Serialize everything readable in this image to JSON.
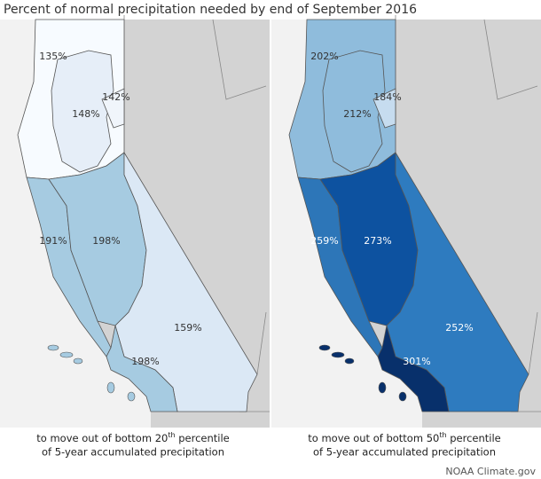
{
  "title": "Percent of normal precipitation needed by end of September 2016",
  "maps": [
    {
      "regions": [
        {
          "label": "135%",
          "color": "#f7fbff"
        },
        {
          "label": "148%",
          "color": "#e6eef8"
        },
        {
          "label": "142%",
          "color": "#f0f5fb"
        },
        {
          "label": "191%",
          "color": "#a6cbe1"
        },
        {
          "label": "198%",
          "color": "#a6cbe1"
        },
        {
          "label": "159%",
          "color": "#dbe8f5"
        },
        {
          "label": "198%",
          "color": "#a6cbe1"
        }
      ],
      "caption": {
        "before": "to move out of bottom 20",
        "sup": "th",
        "after": " percentile",
        "line2": "of 5-year accumulated precipitation"
      }
    },
    {
      "regions": [
        {
          "label": "202%",
          "color": "#8fbcdc"
        },
        {
          "label": "212%",
          "color": "#8fbcdc"
        },
        {
          "label": "184%",
          "color": "#c6dcef"
        },
        {
          "label": "259%",
          "color": "#2d76b8"
        },
        {
          "label": "273%",
          "color": "#0d52a0"
        },
        {
          "label": "252%",
          "color": "#2e7bbf"
        },
        {
          "label": "301%",
          "color": "#08306b"
        }
      ],
      "caption": {
        "before": "to move out of bottom 50",
        "sup": "th",
        "after": " percentile",
        "line2": "of 5-year accumulated precipitation"
      }
    }
  ],
  "credit": "NOAA Climate.gov"
}
